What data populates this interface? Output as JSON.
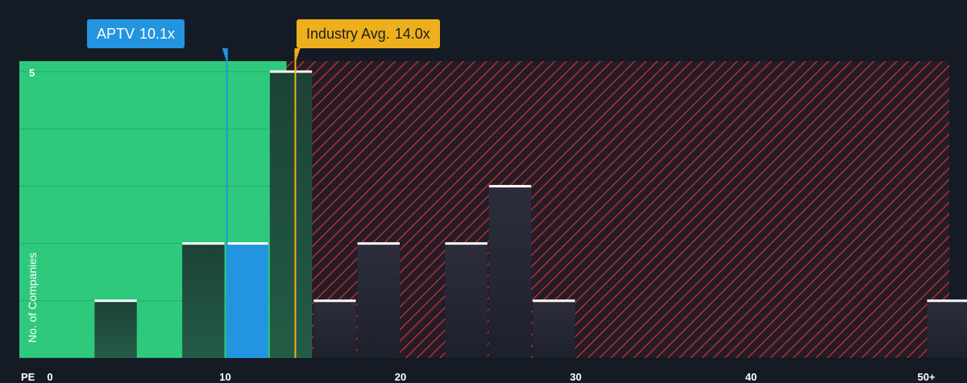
{
  "chart_data": {
    "type": "bar",
    "xlabel": "PE",
    "ylabel": "No. of Companies",
    "x_ticks": [
      "0",
      "10",
      "20",
      "30",
      "40",
      "50+"
    ],
    "y_ticks": [
      "5"
    ],
    "xlim": [
      0,
      51
    ],
    "ylim": [
      0,
      5
    ],
    "bin_width": 2.5,
    "bins": [
      {
        "start": 2.5,
        "value": 1
      },
      {
        "start": 7.5,
        "value": 2
      },
      {
        "start": 10.0,
        "value": 2,
        "highlight": true
      },
      {
        "start": 12.5,
        "value": 5
      },
      {
        "start": 15.0,
        "value": 1
      },
      {
        "start": 17.5,
        "value": 2
      },
      {
        "start": 22.5,
        "value": 2
      },
      {
        "start": 25.0,
        "value": 3
      },
      {
        "start": 27.5,
        "value": 1
      },
      {
        "start": 50.0,
        "value": 1
      }
    ],
    "company": {
      "label": "APTV",
      "value_label": "10.1x",
      "value": 10.1
    },
    "industry_avg": {
      "label": "Industry Avg.",
      "value_label": "14.0x",
      "value": 14.0
    },
    "fair_zone_end": 13.5,
    "colors": {
      "background": "#151b24",
      "fair_zone": "#2ec97c",
      "overvalued_hatch": "#c1343f",
      "company": "#2394e0",
      "industry": "#edb01c",
      "bar_top": "#ffffff"
    }
  }
}
